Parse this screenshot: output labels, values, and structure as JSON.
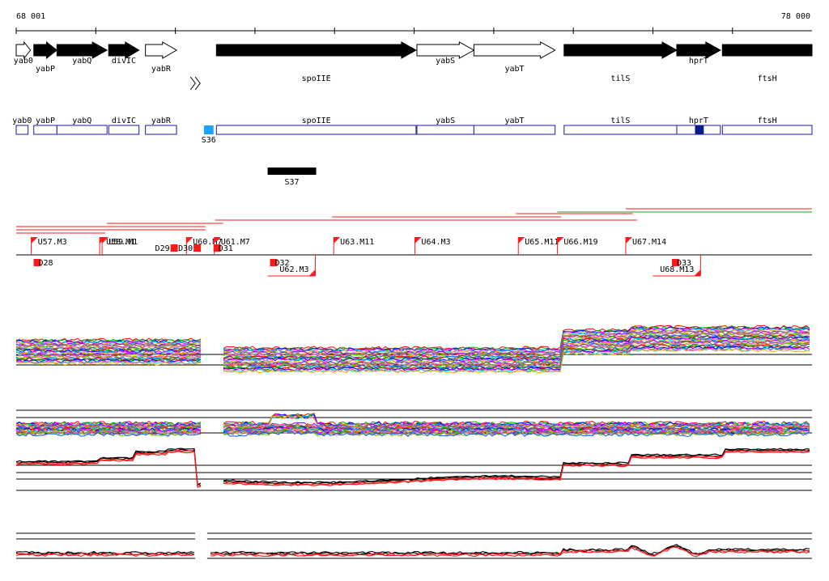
{
  "ruler": {
    "start_label": "68 001",
    "end_label": "78 000",
    "start": 68001,
    "end": 78000
  },
  "colors": {
    "background": "#ffffff",
    "gene_fill": "#000000",
    "segment_outline": "#1a1aa8",
    "segment_highlight_light": "#1aa3ff",
    "segment_highlight_dark": "#0a1a8c",
    "tu_marker": "#ff1a1a",
    "expression_primary": "#ff1a1a",
    "expression_secondary": "#000000",
    "expression_palette": [
      "#ff0000",
      "#00aa00",
      "#0000ff",
      "#ff00ff",
      "#00cccc",
      "#ffaa00",
      "#8800ff",
      "#888888",
      "#a0522d",
      "#ff69b4",
      "#66cc00",
      "#0066ff"
    ]
  },
  "genes": [
    {
      "name": "yab0",
      "start": 68001,
      "end": 68181,
      "strand": "+",
      "filled": false
    },
    {
      "name": "yabP",
      "start": 68222,
      "end": 68513,
      "strand": "+",
      "filled": true
    },
    {
      "name": "yabQ",
      "start": 68513,
      "end": 69142,
      "strand": "+",
      "filled": true
    },
    {
      "name": "divIC",
      "start": 69163,
      "end": 69544,
      "strand": "+",
      "filled": true
    },
    {
      "name": "yabR",
      "start": 69625,
      "end": 70016,
      "strand": "+",
      "filled": false
    },
    {
      "name": "spoIIE",
      "start": 70517,
      "end": 73025,
      "strand": "+",
      "filled": true
    },
    {
      "name": "yabS",
      "start": 73036,
      "end": 73752,
      "strand": "+",
      "filled": false
    },
    {
      "name": "yabT",
      "start": 73752,
      "end": 74772,
      "strand": "+",
      "filled": false
    },
    {
      "name": "tilS",
      "start": 74885,
      "end": 76301,
      "strand": "+",
      "filled": true
    },
    {
      "name": "hprT",
      "start": 76301,
      "end": 76849,
      "strand": "+",
      "filled": true
    },
    {
      "name": "ftsH",
      "start": 76874,
      "end": 78000,
      "strand": "+",
      "filled": true
    }
  ],
  "segments": [
    {
      "name": "yab0",
      "start": 68001,
      "end": 68150
    },
    {
      "name": "yabP",
      "start": 68222,
      "end": 68513
    },
    {
      "name": "yabQ",
      "start": 68513,
      "end": 69142
    },
    {
      "name": "divIC",
      "start": 69163,
      "end": 69544
    },
    {
      "name": "yabR",
      "start": 69625,
      "end": 70016
    },
    {
      "name": "spoIIE",
      "start": 70517,
      "end": 73025
    },
    {
      "name": "yabS",
      "start": 73036,
      "end": 73752
    },
    {
      "name": "yabT",
      "start": 73752,
      "end": 74772
    },
    {
      "name": "tilS",
      "start": 74885,
      "end": 76301
    },
    {
      "name": "hprT",
      "start": 76301,
      "end": 76849
    },
    {
      "name": "ftsH",
      "start": 76874,
      "end": 78000
    }
  ],
  "segment_highlights": [
    {
      "name": "S36",
      "start": 70360,
      "end": 70480,
      "label": "S36",
      "tone": "light"
    },
    {
      "name": "hprT-block",
      "start": 76530,
      "end": 76640,
      "label": "",
      "tone": "dark"
    }
  ],
  "bar_features": [
    {
      "label": "S37",
      "start": 71160,
      "end": 71770
    }
  ],
  "tu_up": [
    {
      "label": "U57.M3",
      "pos": 68190
    },
    {
      "label": "U58.M1",
      "pos": 69050
    },
    {
      "label": "U59.M1",
      "pos": 69080
    },
    {
      "label": "U60.M7",
      "pos": 70140
    },
    {
      "label": "U61.M7",
      "pos": 70490
    },
    {
      "label": "U63.M11",
      "pos": 71990
    },
    {
      "label": "U64.M3",
      "pos": 73010
    },
    {
      "label": "U65.M11",
      "pos": 74310
    },
    {
      "label": "U66.M19",
      "pos": 74800
    },
    {
      "label": "U67.M14",
      "pos": 75660
    }
  ],
  "tu_down": [
    {
      "label": "D28",
      "pos": 68220
    },
    {
      "label": "D29",
      "pos": 69940
    },
    {
      "label": "D30",
      "pos": 70230
    },
    {
      "label": "D31",
      "pos": 70480
    },
    {
      "label": "D32",
      "pos": 71190
    },
    {
      "label": "U62.M3",
      "pos": 71760
    },
    {
      "label": "D33",
      "pos": 76240
    },
    {
      "label": "U68.M13",
      "pos": 76600
    }
  ]
}
